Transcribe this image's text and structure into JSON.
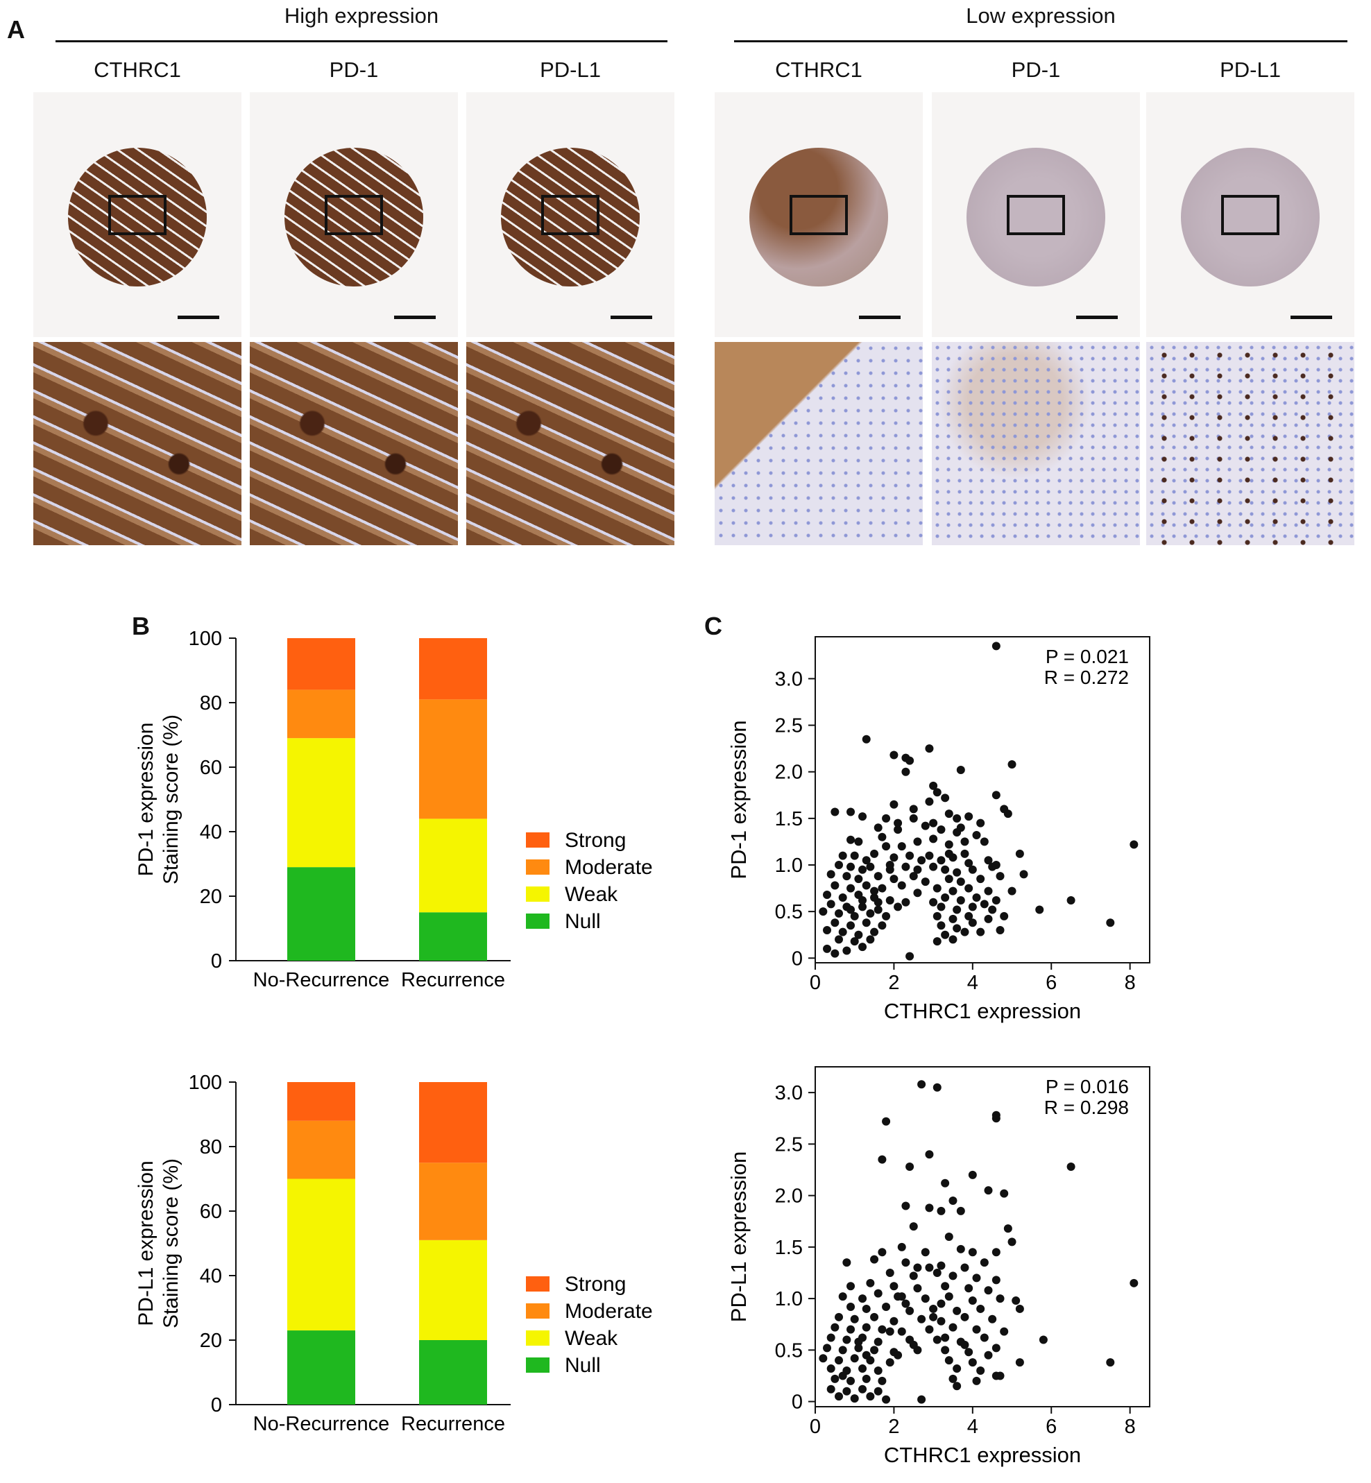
{
  "panel_a": {
    "letter": "A",
    "high_title": "High expression",
    "low_title": "Low expression",
    "high_labels": [
      "CTHRC1",
      "PD-1",
      "PD-L1"
    ],
    "low_labels": [
      "CTHRC1",
      "PD-1",
      "PD-L1"
    ],
    "colors": {
      "high_stain": "#6b3b22",
      "low_cthrc1": "#9a6a4e",
      "low_pd": "#b7a7b2",
      "background": "#f6f4f3",
      "counterstain": "#8e97d6"
    }
  },
  "panel_b": {
    "letter": "B"
  },
  "panel_c": {
    "letter": "C"
  },
  "chart_data": [
    {
      "type": "bar",
      "stacked": true,
      "categories": [
        "No-Recurrence",
        "Recurrence"
      ],
      "series": [
        {
          "name": "Null",
          "values": [
            29,
            15
          ],
          "color": "#1fb81f"
        },
        {
          "name": "Weak",
          "values": [
            40,
            29
          ],
          "color": "#f5f500"
        },
        {
          "name": "Moderate",
          "values": [
            15,
            37
          ],
          "color": "#ff8a10"
        },
        {
          "name": "Strong",
          "values": [
            16,
            19
          ],
          "color": "#ff6010"
        }
      ],
      "ylabel_line1": "PD-1 expression",
      "ylabel_line2": "Staining score (%)",
      "ylim": [
        0,
        100
      ],
      "yticks": [
        0,
        20,
        40,
        60,
        80,
        100
      ],
      "legend_order": [
        "Strong",
        "Moderate",
        "Weak",
        "Null"
      ],
      "legend_position": "right"
    },
    {
      "type": "bar",
      "stacked": true,
      "categories": [
        "No-Recurrence",
        "Recurrence"
      ],
      "series": [
        {
          "name": "Null",
          "values": [
            23,
            20
          ],
          "color": "#1fb81f"
        },
        {
          "name": "Weak",
          "values": [
            47,
            31
          ],
          "color": "#f5f500"
        },
        {
          "name": "Moderate",
          "values": [
            18,
            24
          ],
          "color": "#ff8a10"
        },
        {
          "name": "Strong",
          "values": [
            12,
            25
          ],
          "color": "#ff6010"
        }
      ],
      "ylabel_line1": "PD-L1 expression",
      "ylabel_line2": "Staining score (%)",
      "ylim": [
        0,
        100
      ],
      "yticks": [
        0,
        20,
        40,
        60,
        80,
        100
      ],
      "legend_order": [
        "Strong",
        "Moderate",
        "Weak",
        "Null"
      ],
      "legend_position": "right"
    },
    {
      "type": "scatter",
      "xlabel": "CTHRC1 expression",
      "ylabel": "PD-1 expression",
      "xlim": [
        0,
        8.5
      ],
      "ylim": [
        -0.05,
        3.45
      ],
      "xticks": [
        0,
        2,
        4,
        6,
        8
      ],
      "yticks": [
        "0",
        "0.5",
        "1.0",
        "1.5",
        "2.0",
        "2.5",
        "3.0"
      ],
      "annotation": [
        "P = 0.021",
        "R = 0.272"
      ],
      "points": [
        [
          4.6,
          3.35
        ],
        [
          1.3,
          2.35
        ],
        [
          2.9,
          2.25
        ],
        [
          2.0,
          2.18
        ],
        [
          2.3,
          2.15
        ],
        [
          2.4,
          2.12
        ],
        [
          5.0,
          2.08
        ],
        [
          3.7,
          2.02
        ],
        [
          2.3,
          2.0
        ],
        [
          0.5,
          1.57
        ],
        [
          0.9,
          1.57
        ],
        [
          2.0,
          1.65
        ],
        [
          3.0,
          1.85
        ],
        [
          3.1,
          1.78
        ],
        [
          3.3,
          1.72
        ],
        [
          2.9,
          1.68
        ],
        [
          4.6,
          1.75
        ],
        [
          4.8,
          1.6
        ],
        [
          4.9,
          1.55
        ],
        [
          1.2,
          1.52
        ],
        [
          1.8,
          1.5
        ],
        [
          2.5,
          1.5
        ],
        [
          3.4,
          1.55
        ],
        [
          3.6,
          1.5
        ],
        [
          3.9,
          1.52
        ],
        [
          4.2,
          1.45
        ],
        [
          1.6,
          1.4
        ],
        [
          2.1,
          1.38
        ],
        [
          2.8,
          1.42
        ],
        [
          3.2,
          1.38
        ],
        [
          3.6,
          1.35
        ],
        [
          4.1,
          1.32
        ],
        [
          0.9,
          1.27
        ],
        [
          1.1,
          1.25
        ],
        [
          1.7,
          1.3
        ],
        [
          1.8,
          1.2
        ],
        [
          2.2,
          1.2
        ],
        [
          2.6,
          1.25
        ],
        [
          3.0,
          1.28
        ],
        [
          3.4,
          1.22
        ],
        [
          3.8,
          1.25
        ],
        [
          4.3,
          1.25
        ],
        [
          5.2,
          1.12
        ],
        [
          8.1,
          1.22
        ],
        [
          0.7,
          1.1
        ],
        [
          1.0,
          1.1
        ],
        [
          1.3,
          1.05
        ],
        [
          1.5,
          1.12
        ],
        [
          2.0,
          1.08
        ],
        [
          2.4,
          1.1
        ],
        [
          2.9,
          1.1
        ],
        [
          3.2,
          1.05
        ],
        [
          3.5,
          1.08
        ],
        [
          3.9,
          1.02
        ],
        [
          4.4,
          1.05
        ],
        [
          0.6,
          1.0
        ],
        [
          0.9,
          0.98
        ],
        [
          1.2,
          0.95
        ],
        [
          1.4,
          0.98
        ],
        [
          1.9,
          0.95
        ],
        [
          2.3,
          0.98
        ],
        [
          2.6,
          0.95
        ],
        [
          3.0,
          0.98
        ],
        [
          3.3,
          0.95
        ],
        [
          3.6,
          0.92
        ],
        [
          4.0,
          0.95
        ],
        [
          4.5,
          0.98
        ],
        [
          5.3,
          0.9
        ],
        [
          0.4,
          0.9
        ],
        [
          0.8,
          0.88
        ],
        [
          1.1,
          0.85
        ],
        [
          1.6,
          0.88
        ],
        [
          2.0,
          0.85
        ],
        [
          2.5,
          0.88
        ],
        [
          2.8,
          0.82
        ],
        [
          3.4,
          0.85
        ],
        [
          3.7,
          0.82
        ],
        [
          4.2,
          0.85
        ],
        [
          4.7,
          0.88
        ],
        [
          0.5,
          0.78
        ],
        [
          0.9,
          0.75
        ],
        [
          1.3,
          0.78
        ],
        [
          1.7,
          0.75
        ],
        [
          2.2,
          0.78
        ],
        [
          3.1,
          0.75
        ],
        [
          3.5,
          0.72
        ],
        [
          3.9,
          0.75
        ],
        [
          4.4,
          0.72
        ],
        [
          5.0,
          0.72
        ],
        [
          0.3,
          0.68
        ],
        [
          0.7,
          0.65
        ],
        [
          1.1,
          0.68
        ],
        [
          1.5,
          0.65
        ],
        [
          1.9,
          0.62
        ],
        [
          3.3,
          0.65
        ],
        [
          3.7,
          0.62
        ],
        [
          4.1,
          0.65
        ],
        [
          4.6,
          0.62
        ],
        [
          6.5,
          0.62
        ],
        [
          0.4,
          0.58
        ],
        [
          0.8,
          0.55
        ],
        [
          1.2,
          0.55
        ],
        [
          1.6,
          0.52
        ],
        [
          2.1,
          0.55
        ],
        [
          3.2,
          0.55
        ],
        [
          3.6,
          0.52
        ],
        [
          4.0,
          0.55
        ],
        [
          4.5,
          0.52
        ],
        [
          5.7,
          0.52
        ],
        [
          0.2,
          0.5
        ],
        [
          0.6,
          0.48
        ],
        [
          1.0,
          0.45
        ],
        [
          1.4,
          0.48
        ],
        [
          1.8,
          0.45
        ],
        [
          3.1,
          0.45
        ],
        [
          3.5,
          0.42
        ],
        [
          3.9,
          0.45
        ],
        [
          4.4,
          0.42
        ],
        [
          4.8,
          0.45
        ],
        [
          0.5,
          0.38
        ],
        [
          0.9,
          0.35
        ],
        [
          1.3,
          0.38
        ],
        [
          1.7,
          0.35
        ],
        [
          3.2,
          0.35
        ],
        [
          3.6,
          0.32
        ],
        [
          4.0,
          0.38
        ],
        [
          7.5,
          0.38
        ],
        [
          0.3,
          0.3
        ],
        [
          0.7,
          0.28
        ],
        [
          1.1,
          0.25
        ],
        [
          1.5,
          0.28
        ],
        [
          3.3,
          0.25
        ],
        [
          3.8,
          0.28
        ],
        [
          4.2,
          0.28
        ],
        [
          4.7,
          0.3
        ],
        [
          0.6,
          0.2
        ],
        [
          1.0,
          0.18
        ],
        [
          1.4,
          0.2
        ],
        [
          3.1,
          0.18
        ],
        [
          3.5,
          0.2
        ],
        [
          0.3,
          0.1
        ],
        [
          0.8,
          0.08
        ],
        [
          1.2,
          0.12
        ],
        [
          0.5,
          0.05
        ],
        [
          2.4,
          0.02
        ],
        [
          1.6,
          0.6
        ],
        [
          2.6,
          0.7
        ],
        [
          2.3,
          0.6
        ],
        [
          1.9,
          1.0
        ],
        [
          3.0,
          0.6
        ],
        [
          4.3,
          0.58
        ],
        [
          3.4,
          1.12
        ],
        [
          2.7,
          1.05
        ],
        [
          1.5,
          0.72
        ],
        [
          1.2,
          0.62
        ],
        [
          0.9,
          0.52
        ],
        [
          4.6,
          1.0
        ],
        [
          3.8,
          1.12
        ],
        [
          3.7,
          1.4
        ],
        [
          3.0,
          1.45
        ],
        [
          2.5,
          1.6
        ],
        [
          2.1,
          1.45
        ]
      ]
    },
    {
      "type": "scatter",
      "xlabel": "CTHRC1 expression",
      "ylabel": "PD-L1 expression",
      "xlim": [
        0,
        8.5
      ],
      "ylim": [
        -0.05,
        3.25
      ],
      "xticks": [
        0,
        2,
        4,
        6,
        8
      ],
      "yticks": [
        "0",
        "0.5",
        "1.0",
        "1.5",
        "2.0",
        "2.5",
        "3.0"
      ],
      "annotation": [
        "P = 0.016",
        "R = 0.298"
      ],
      "points": [
        [
          2.7,
          3.08
        ],
        [
          3.1,
          3.05
        ],
        [
          1.8,
          2.72
        ],
        [
          4.6,
          2.78
        ],
        [
          4.6,
          2.75
        ],
        [
          6.5,
          2.28
        ],
        [
          1.7,
          2.35
        ],
        [
          2.9,
          2.4
        ],
        [
          2.4,
          2.28
        ],
        [
          4.0,
          2.2
        ],
        [
          3.3,
          2.12
        ],
        [
          4.4,
          2.05
        ],
        [
          4.8,
          2.02
        ],
        [
          3.5,
          1.95
        ],
        [
          2.3,
          1.9
        ],
        [
          2.9,
          1.88
        ],
        [
          3.2,
          1.85
        ],
        [
          3.7,
          1.85
        ],
        [
          2.5,
          1.7
        ],
        [
          3.4,
          1.6
        ],
        [
          4.9,
          1.68
        ],
        [
          5.0,
          1.55
        ],
        [
          2.2,
          1.5
        ],
        [
          1.7,
          1.45
        ],
        [
          2.8,
          1.45
        ],
        [
          3.7,
          1.48
        ],
        [
          4.0,
          1.45
        ],
        [
          4.6,
          1.45
        ],
        [
          0.8,
          1.35
        ],
        [
          1.5,
          1.38
        ],
        [
          2.3,
          1.35
        ],
        [
          2.9,
          1.3
        ],
        [
          3.2,
          1.32
        ],
        [
          3.8,
          1.3
        ],
        [
          4.3,
          1.35
        ],
        [
          1.9,
          1.25
        ],
        [
          2.5,
          1.22
        ],
        [
          3.1,
          1.25
        ],
        [
          3.5,
          1.22
        ],
        [
          4.1,
          1.2
        ],
        [
          4.6,
          1.18
        ],
        [
          8.1,
          1.15
        ],
        [
          0.9,
          1.12
        ],
        [
          1.4,
          1.15
        ],
        [
          2.0,
          1.12
        ],
        [
          2.6,
          1.1
        ],
        [
          3.3,
          1.12
        ],
        [
          3.9,
          1.1
        ],
        [
          4.4,
          1.08
        ],
        [
          0.7,
          1.02
        ],
        [
          1.2,
          1.0
        ],
        [
          1.6,
          1.05
        ],
        [
          2.2,
          1.02
        ],
        [
          2.8,
          1.0
        ],
        [
          3.4,
          1.02
        ],
        [
          4.0,
          0.98
        ],
        [
          4.7,
          1.0
        ],
        [
          5.2,
          0.9
        ],
        [
          5.1,
          0.98
        ],
        [
          0.9,
          0.92
        ],
        [
          1.3,
          0.9
        ],
        [
          1.8,
          0.92
        ],
        [
          2.4,
          0.88
        ],
        [
          3.0,
          0.9
        ],
        [
          3.6,
          0.88
        ],
        [
          4.2,
          0.9
        ],
        [
          0.6,
          0.82
        ],
        [
          1.0,
          0.8
        ],
        [
          1.5,
          0.82
        ],
        [
          2.0,
          0.78
        ],
        [
          2.7,
          0.8
        ],
        [
          3.2,
          0.78
        ],
        [
          3.8,
          0.82
        ],
        [
          4.5,
          0.8
        ],
        [
          0.5,
          0.72
        ],
        [
          0.9,
          0.7
        ],
        [
          1.3,
          0.72
        ],
        [
          1.7,
          0.7
        ],
        [
          2.2,
          0.68
        ],
        [
          2.9,
          0.7
        ],
        [
          3.5,
          0.72
        ],
        [
          4.1,
          0.7
        ],
        [
          4.8,
          0.68
        ],
        [
          0.4,
          0.62
        ],
        [
          0.8,
          0.6
        ],
        [
          1.2,
          0.62
        ],
        [
          1.6,
          0.58
        ],
        [
          2.4,
          0.6
        ],
        [
          3.1,
          0.6
        ],
        [
          3.7,
          0.58
        ],
        [
          4.3,
          0.62
        ],
        [
          5.8,
          0.6
        ],
        [
          0.3,
          0.52
        ],
        [
          0.7,
          0.5
        ],
        [
          1.1,
          0.52
        ],
        [
          1.5,
          0.5
        ],
        [
          2.0,
          0.48
        ],
        [
          2.6,
          0.5
        ],
        [
          3.3,
          0.5
        ],
        [
          3.9,
          0.48
        ],
        [
          4.6,
          0.52
        ],
        [
          0.2,
          0.42
        ],
        [
          0.6,
          0.4
        ],
        [
          1.0,
          0.42
        ],
        [
          1.4,
          0.4
        ],
        [
          1.9,
          0.38
        ],
        [
          3.4,
          0.4
        ],
        [
          4.0,
          0.38
        ],
        [
          5.2,
          0.38
        ],
        [
          7.5,
          0.38
        ],
        [
          0.4,
          0.32
        ],
        [
          0.8,
          0.3
        ],
        [
          1.2,
          0.32
        ],
        [
          1.6,
          0.3
        ],
        [
          3.6,
          0.32
        ],
        [
          4.2,
          0.3
        ],
        [
          0.5,
          0.22
        ],
        [
          0.9,
          0.2
        ],
        [
          1.3,
          0.22
        ],
        [
          1.7,
          0.2
        ],
        [
          3.5,
          0.22
        ],
        [
          4.1,
          0.2
        ],
        [
          4.6,
          0.25
        ],
        [
          4.7,
          0.25
        ],
        [
          0.4,
          0.12
        ],
        [
          0.8,
          0.1
        ],
        [
          1.2,
          0.12
        ],
        [
          1.6,
          0.1
        ],
        [
          3.6,
          0.15
        ],
        [
          0.6,
          0.05
        ],
        [
          1.0,
          0.03
        ],
        [
          1.8,
          0.02
        ],
        [
          2.7,
          0.02
        ],
        [
          1.4,
          0.05
        ],
        [
          2.1,
          0.45
        ],
        [
          2.5,
          0.55
        ],
        [
          3.0,
          0.82
        ],
        [
          3.2,
          0.95
        ],
        [
          2.3,
          0.95
        ],
        [
          1.9,
          0.68
        ],
        [
          1.1,
          0.58
        ],
        [
          0.7,
          0.25
        ],
        [
          1.3,
          0.45
        ],
        [
          4.4,
          0.45
        ],
        [
          3.8,
          0.55
        ],
        [
          3.3,
          0.62
        ],
        [
          2.6,
          1.3
        ],
        [
          2.1,
          1.02
        ]
      ]
    }
  ]
}
